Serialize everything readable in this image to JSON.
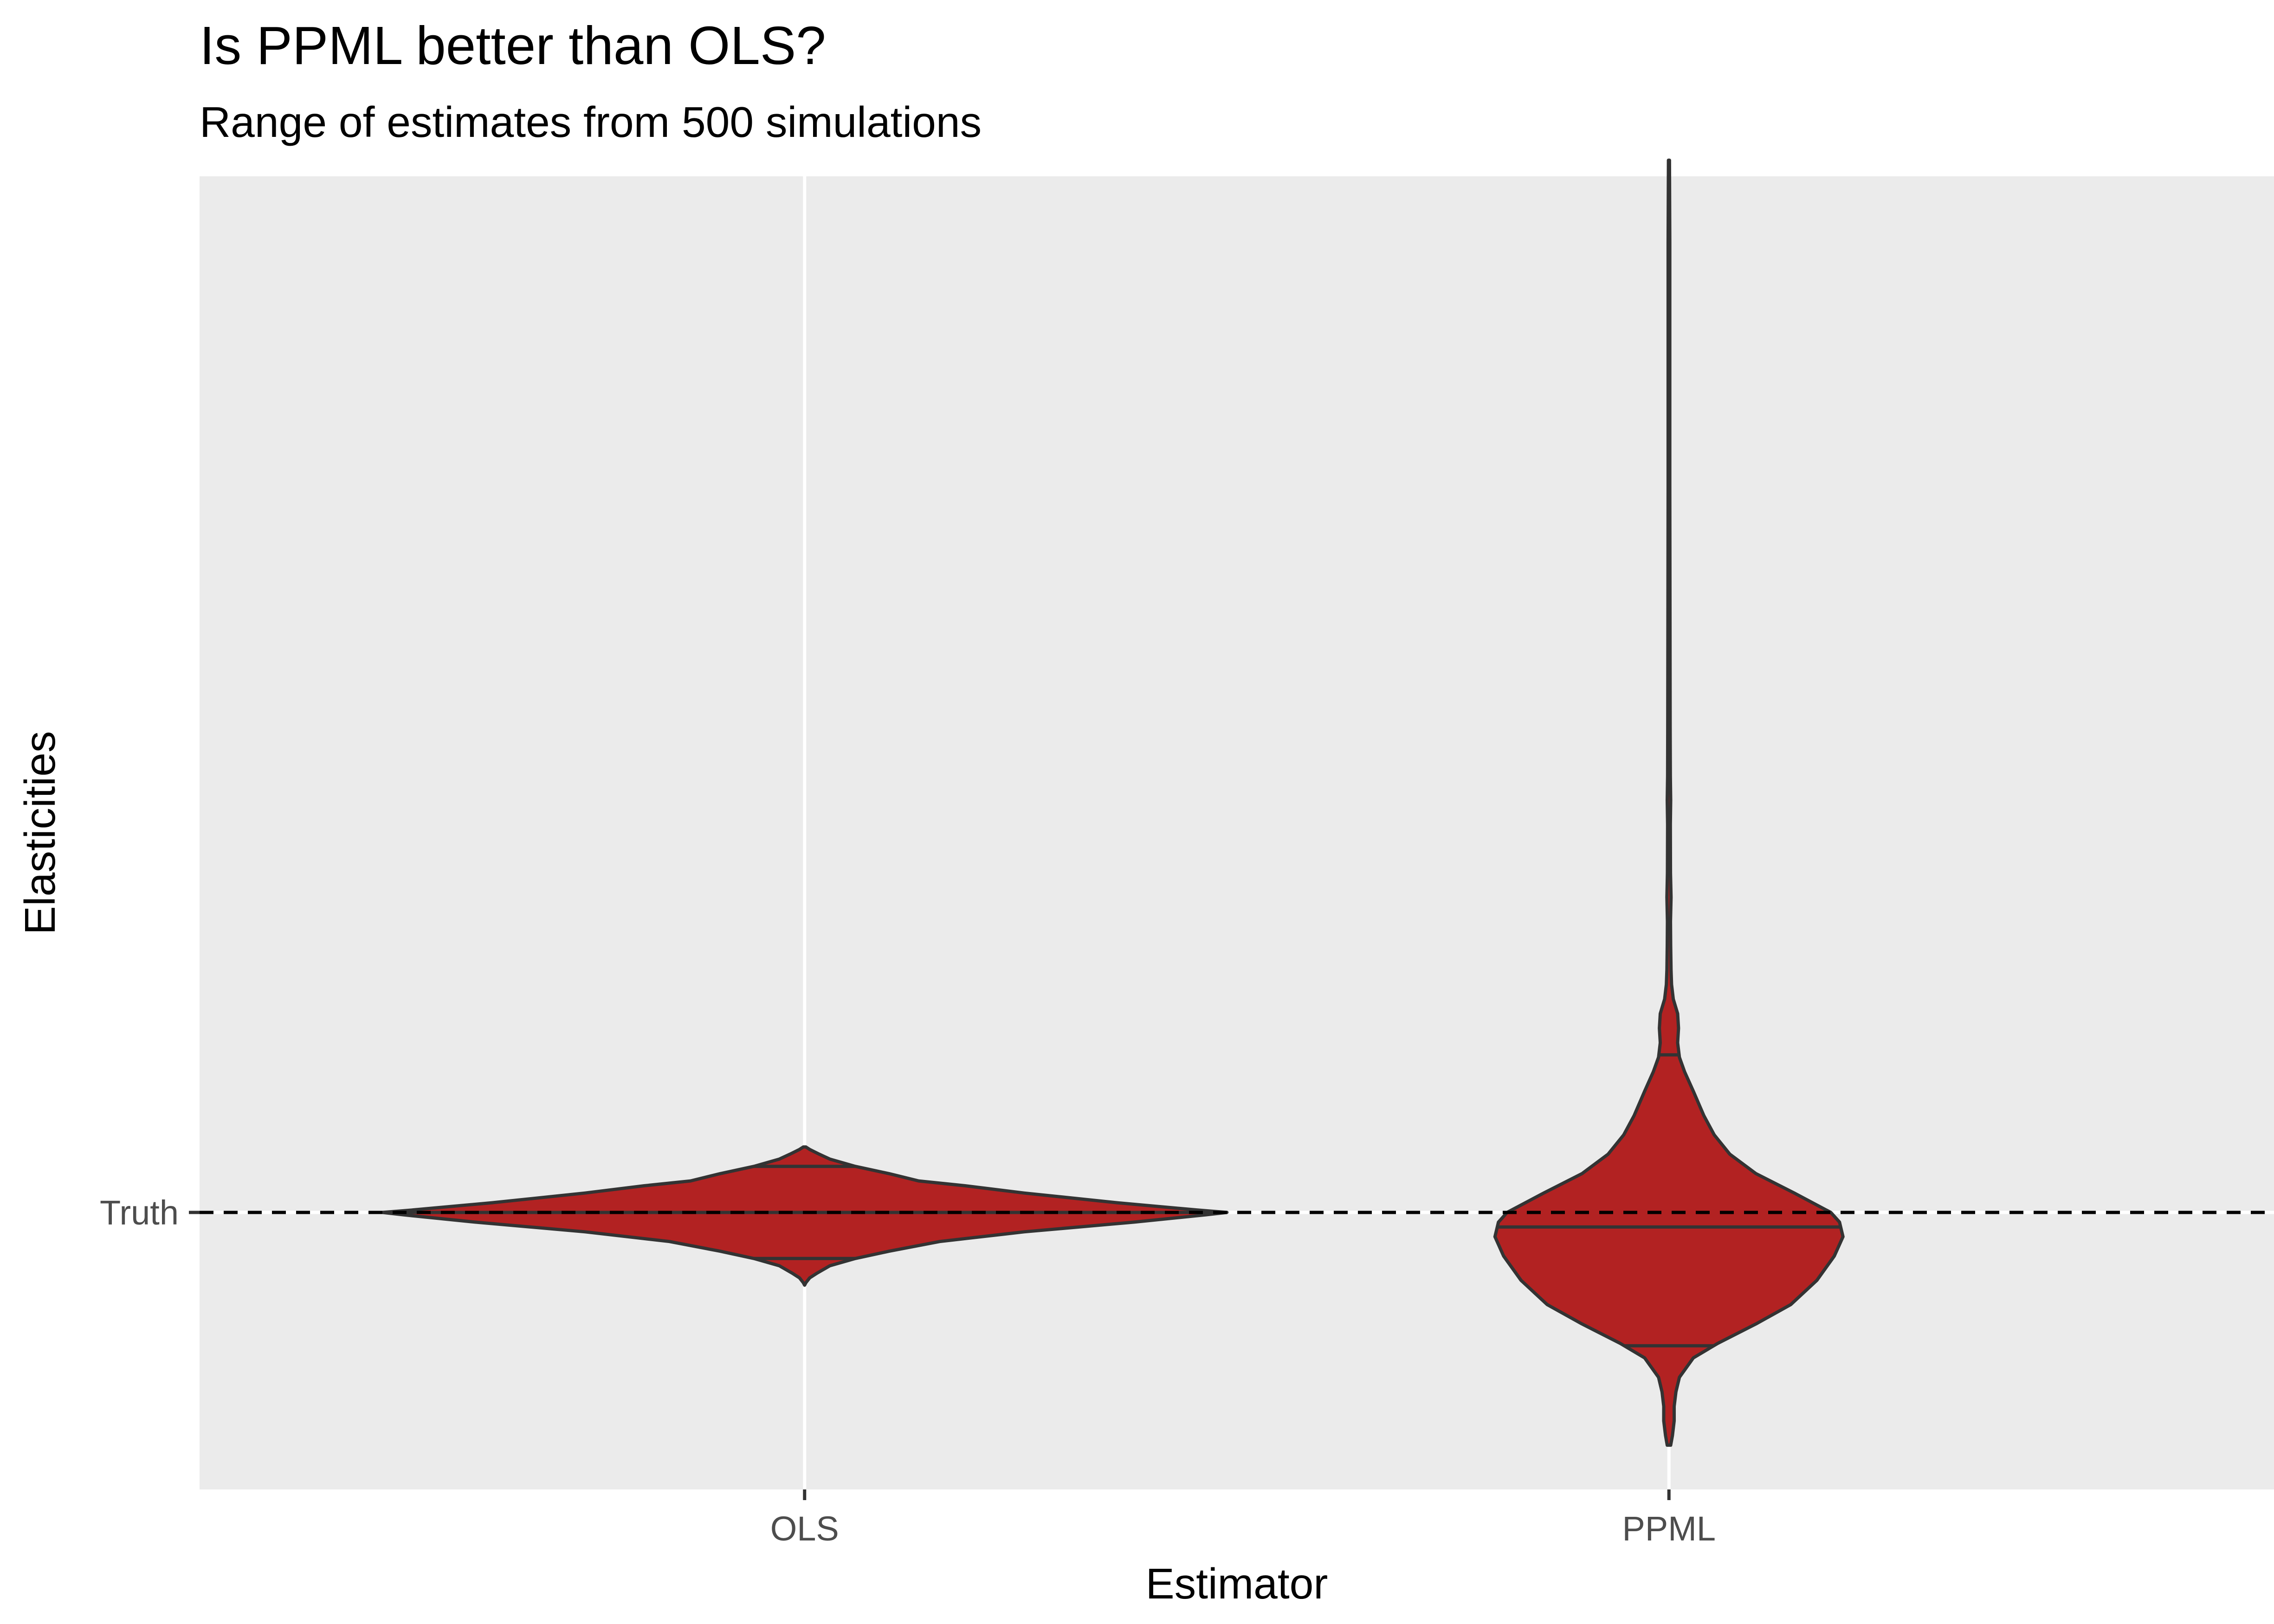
{
  "chart_data": {
    "type": "violin",
    "title": "Is PPML better than OLS?",
    "subtitle": "Range of estimates from 500 simulations",
    "xlabel": "Estimator",
    "ylabel": "Elasticities",
    "categories": [
      "OLS",
      "PPML"
    ],
    "y_ticks": [
      {
        "label": "Truth",
        "value": 0
      }
    ],
    "reference_line": {
      "label": "Truth",
      "value": 0,
      "style": "dashed",
      "color": "#000000"
    },
    "ylim": [
      -0.6,
      2.3
    ],
    "grid": true,
    "fill_color": "#B22222",
    "outline_color": "#333333",
    "panel_background": "#EBEBEB",
    "violins": [
      {
        "name": "OLS",
        "min": -0.15,
        "max": 0.13,
        "quantiles": {
          "q25": -0.095,
          "q50": 0.0,
          "q75": 0.095
        },
        "density": [
          [
            -0.145,
            0.003
          ],
          [
            -0.135,
            0.012
          ],
          [
            -0.125,
            0.03
          ],
          [
            -0.11,
            0.06
          ],
          [
            -0.095,
            0.12
          ],
          [
            -0.08,
            0.2
          ],
          [
            -0.06,
            0.32
          ],
          [
            -0.04,
            0.52
          ],
          [
            -0.02,
            0.78
          ],
          [
            -0.005,
            0.95
          ],
          [
            0.0,
            1.0
          ],
          [
            0.005,
            0.93
          ],
          [
            0.02,
            0.74
          ],
          [
            0.04,
            0.52
          ],
          [
            0.055,
            0.38
          ],
          [
            0.065,
            0.27
          ],
          [
            0.08,
            0.2
          ],
          [
            0.095,
            0.12
          ],
          [
            0.11,
            0.06
          ],
          [
            0.12,
            0.035
          ],
          [
            0.13,
            0.012
          ],
          [
            0.135,
            0.003
          ]
        ]
      },
      {
        "name": "PPML",
        "min": -0.48,
        "max": 2.17,
        "quantiles": {
          "q25": -0.275,
          "q50": -0.03,
          "q75": 0.325
        },
        "density": [
          [
            -0.48,
            0.01
          ],
          [
            -0.46,
            0.02
          ],
          [
            -0.43,
            0.03
          ],
          [
            -0.4,
            0.03
          ],
          [
            -0.37,
            0.04
          ],
          [
            -0.34,
            0.06
          ],
          [
            -0.3,
            0.14
          ],
          [
            -0.27,
            0.28
          ],
          [
            -0.23,
            0.5
          ],
          [
            -0.19,
            0.7
          ],
          [
            -0.14,
            0.85
          ],
          [
            -0.09,
            0.95
          ],
          [
            -0.05,
            1.0
          ],
          [
            -0.02,
            0.98
          ],
          [
            0.0,
            0.93
          ],
          [
            0.04,
            0.72
          ],
          [
            0.08,
            0.5
          ],
          [
            0.12,
            0.35
          ],
          [
            0.16,
            0.26
          ],
          [
            0.2,
            0.2
          ],
          [
            0.25,
            0.14
          ],
          [
            0.29,
            0.09
          ],
          [
            0.32,
            0.06
          ],
          [
            0.35,
            0.05
          ],
          [
            0.38,
            0.055
          ],
          [
            0.41,
            0.05
          ],
          [
            0.44,
            0.025
          ],
          [
            0.47,
            0.015
          ],
          [
            0.5,
            0.012
          ],
          [
            0.55,
            0.01
          ],
          [
            0.6,
            0.009
          ],
          [
            0.65,
            0.012
          ],
          [
            0.7,
            0.009
          ],
          [
            0.8,
            0.008
          ],
          [
            0.85,
            0.01
          ],
          [
            0.9,
            0.008
          ],
          [
            1.0,
            0.007
          ],
          [
            1.5,
            0.005
          ],
          [
            2.0,
            0.005
          ],
          [
            2.17,
            0.003
          ]
        ]
      }
    ]
  }
}
